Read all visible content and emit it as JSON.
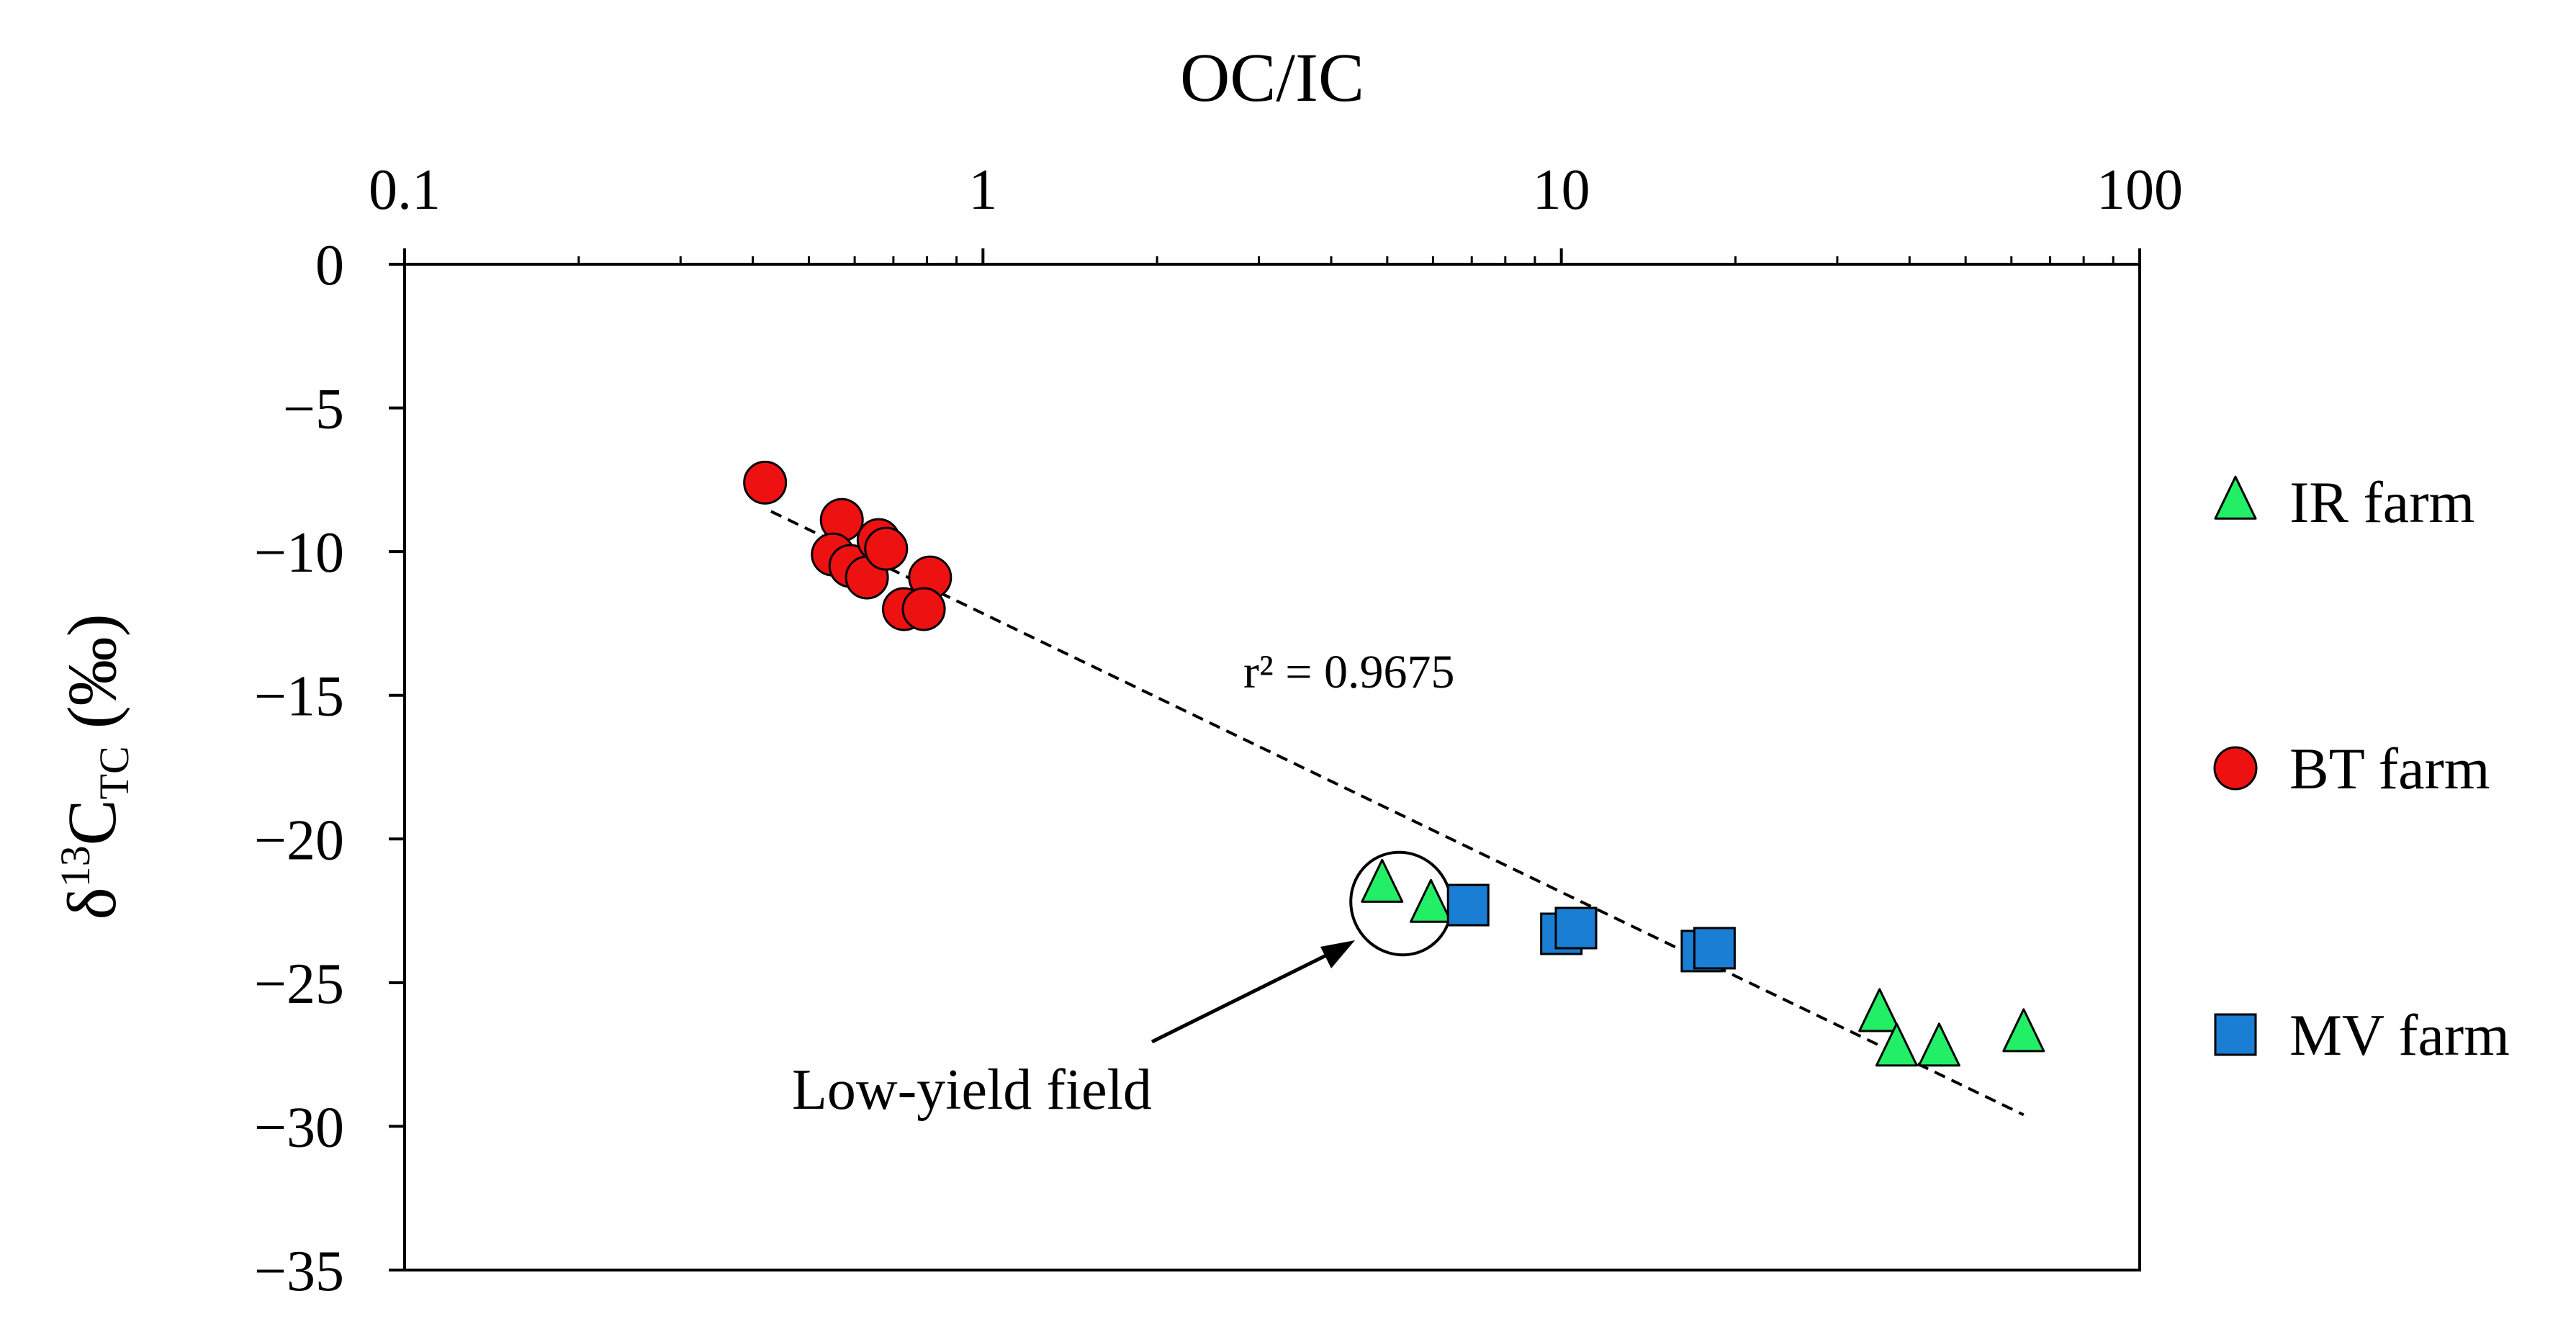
{
  "chart_data": {
    "type": "scatter",
    "title": "",
    "xlabel": "OC/IC",
    "ylabel": {
      "prefix": "δ",
      "sup": "13",
      "main": "C",
      "sub": "TC",
      "unit": " (‰)"
    },
    "xscale": "log",
    "xlim": [
      0.1,
      100
    ],
    "ylim": [
      -35,
      0
    ],
    "x_ticks": [
      0.1,
      1,
      10,
      100
    ],
    "x_tick_labels": [
      "0.1",
      "1",
      "10",
      "100"
    ],
    "y_ticks": [
      0,
      -5,
      -10,
      -15,
      -20,
      -25,
      -30,
      -35
    ],
    "y_tick_labels": [
      "0",
      "−5",
      "−10",
      "−15",
      "−20",
      "−25",
      "−30",
      "−35"
    ],
    "x_axis_position": "top",
    "grid": false,
    "legend_position": "right",
    "series": [
      {
        "name": "IR farm",
        "marker": "triangle",
        "color": "#22ee66",
        "points": [
          [
            4.9,
            -21.6
          ],
          [
            5.95,
            -22.3
          ],
          [
            35.5,
            -26.1
          ],
          [
            38.0,
            -27.3
          ],
          [
            45.0,
            -27.3
          ],
          [
            63.0,
            -26.8
          ]
        ]
      },
      {
        "name": "BT farm",
        "marker": "circle",
        "color": "#ee1111",
        "points": [
          [
            0.42,
            -7.6
          ],
          [
            0.57,
            -8.9
          ],
          [
            0.55,
            -10.1
          ],
          [
            0.59,
            -10.5
          ],
          [
            0.63,
            -10.9
          ],
          [
            0.66,
            -9.6
          ],
          [
            0.68,
            -9.9
          ],
          [
            0.81,
            -10.9
          ],
          [
            0.73,
            -12.0
          ],
          [
            0.79,
            -12.0
          ]
        ]
      },
      {
        "name": "MV farm",
        "marker": "square",
        "color": "#1a7ed4",
        "points": [
          [
            6.9,
            -22.3
          ],
          [
            10.0,
            -23.3
          ],
          [
            10.6,
            -23.1
          ],
          [
            17.5,
            -23.9
          ],
          [
            18.4,
            -23.8
          ]
        ]
      }
    ],
    "trendline": {
      "label": "r² = 0.9675",
      "x_start": 0.43,
      "y_start": -8.6,
      "x_end": 63,
      "y_end": -29.6
    },
    "annotations": [
      {
        "text": "Low-yield field",
        "target_x": 5.6,
        "target_y": -22.2
      }
    ]
  }
}
